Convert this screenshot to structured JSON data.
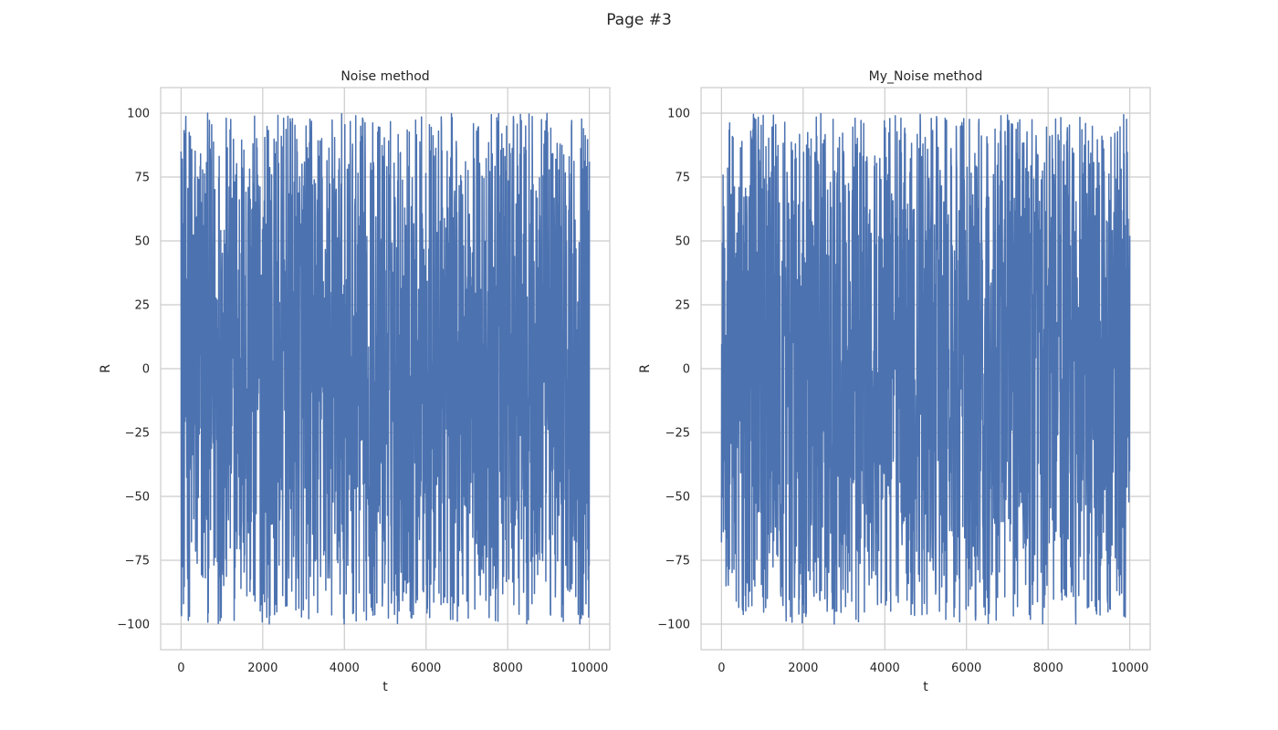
{
  "figure": {
    "title": "Page #3"
  },
  "chart_data": [
    {
      "type": "line",
      "title": "Noise method",
      "xlabel": "t",
      "ylabel": "R",
      "xlim": [
        -500,
        10500
      ],
      "ylim": [
        -110,
        110
      ],
      "xticks": [
        0,
        2000,
        4000,
        6000,
        8000,
        10000
      ],
      "yticks": [
        100,
        75,
        50,
        25,
        0,
        -25,
        -50,
        -75,
        -100
      ],
      "grid": true,
      "series": [
        {
          "color": "#4c72b0",
          "x_range": [
            0,
            10000
          ],
          "n_points": 10000,
          "value_range": [
            -100,
            100
          ],
          "start_value": 85,
          "end_value": 81
        }
      ]
    },
    {
      "type": "line",
      "title": "My_Noise method",
      "xlabel": "t",
      "ylabel": "R",
      "xlim": [
        -500,
        10500
      ],
      "ylim": [
        -110,
        110
      ],
      "xticks": [
        0,
        2000,
        4000,
        6000,
        8000,
        10000
      ],
      "yticks": [
        100,
        75,
        50,
        25,
        0,
        -25,
        -50,
        -75,
        -100
      ],
      "grid": true,
      "series": [
        {
          "color": "#4c72b0",
          "x_range": [
            0,
            10000
          ],
          "n_points": 10000,
          "value_range": [
            -100,
            100
          ],
          "start_value": -68,
          "end_value": 52
        }
      ]
    }
  ]
}
